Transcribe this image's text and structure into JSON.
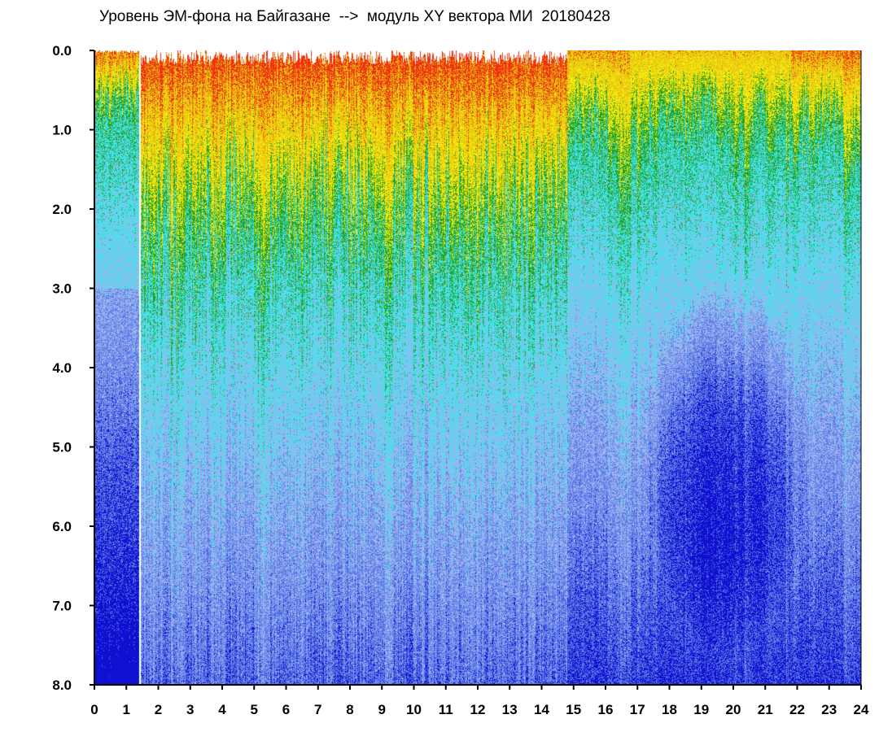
{
  "chart_data": {
    "type": "heatmap",
    "title": "Уровень ЭМ-фона на Байгазане  -->  модуль XY вектора МИ  20180428",
    "xlabel": "",
    "ylabel": "",
    "xlim": [
      0,
      24
    ],
    "ylim": [
      0,
      8
    ],
    "y_inverted": true,
    "grid": false,
    "x_ticks": [
      "0",
      "1",
      "2",
      "3",
      "4",
      "5",
      "6",
      "7",
      "8",
      "9",
      "10",
      "11",
      "12",
      "13",
      "14",
      "15",
      "16",
      "17",
      "18",
      "19",
      "20",
      "21",
      "22",
      "23",
      "24"
    ],
    "y_ticks": [
      "0.0",
      "1.0",
      "2.0",
      "3.0",
      "4.0",
      "5.0",
      "6.0",
      "7.0",
      "8.0"
    ],
    "colormap": [
      "#1010d0",
      "#5a78e6",
      "#9db4f0",
      "#3fe4ea",
      "#22a022",
      "#f2ea10",
      "#e8c010",
      "#f03010"
    ],
    "x_bands": [
      {
        "x0": 0.0,
        "x1": 1.4,
        "activity": 0.75,
        "intensity": 0.45
      },
      {
        "x0": 1.4,
        "x1": 1.45,
        "gap": true
      },
      {
        "x0": 1.45,
        "x1": 14.8,
        "activity": 2.2,
        "intensity": 0.65
      },
      {
        "x0": 14.8,
        "x1": 16.8,
        "activity": 1.1,
        "intensity": 0.2
      },
      {
        "x0": 16.8,
        "x1": 21.8,
        "activity": 0.9,
        "intensity": 0.05
      },
      {
        "x0": 21.8,
        "x1": 24.0,
        "activity": 1.0,
        "intensity": 0.35
      }
    ],
    "dark_zone": {
      "x_center": 19.8,
      "y_center": 5.2,
      "x_radius": 2.6,
      "y_radius": 2.4
    }
  }
}
